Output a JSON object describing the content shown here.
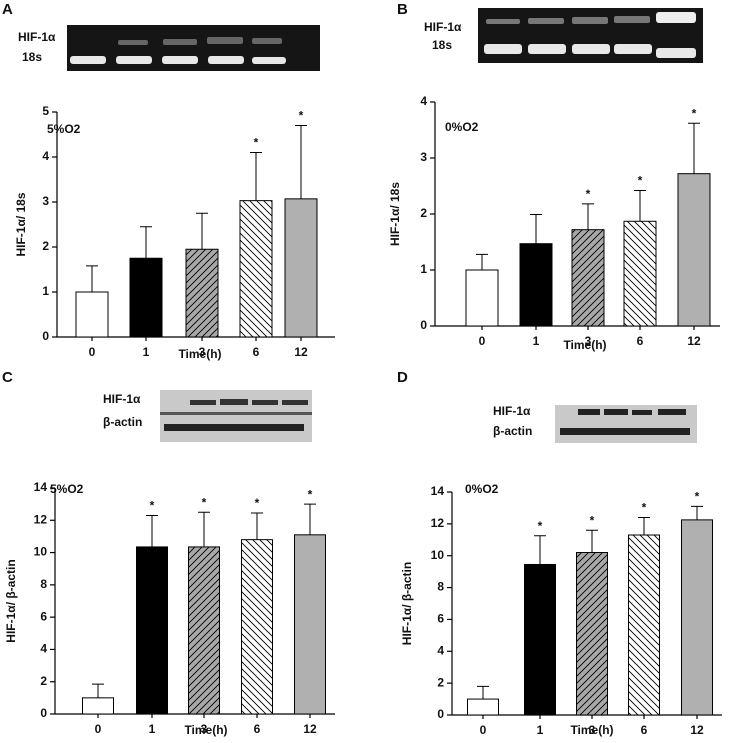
{
  "chart_data": [
    {
      "type": "bar",
      "panel": "A",
      "gel_labels": [
        "HIF-1α",
        "18s"
      ],
      "condition": "5%O2",
      "x_label": "Time(h)",
      "y_label": "HIF-1α/ 18s",
      "categories": [
        "0",
        "1",
        "3",
        "6",
        "12"
      ],
      "values": [
        1,
        1.75,
        1.95,
        3.03,
        3.07
      ],
      "errors": [
        0.58,
        0.7,
        0.8,
        1.07,
        1.63
      ],
      "colors": [
        "#ffffff",
        "#000000",
        "#a8a8a8",
        "#ffffff",
        "#b0b0b0"
      ],
      "patterns": [
        null,
        null,
        "diagonal-up",
        "diagonal-down",
        null
      ],
      "significant": [
        false,
        false,
        false,
        true,
        true
      ],
      "sig_mark": "*",
      "ylim": [
        0,
        5
      ],
      "yticks": [
        0,
        1,
        2,
        3,
        4,
        5
      ]
    },
    {
      "type": "bar",
      "panel": "B",
      "gel_labels": [
        "HIF-1α",
        "18s"
      ],
      "condition": "0%O2",
      "x_label": "Time(h)",
      "y_label": "HIF-1α/ 18s",
      "categories": [
        "0",
        "1",
        "3",
        "6",
        "12"
      ],
      "values": [
        1,
        1.47,
        1.72,
        1.87,
        2.72
      ],
      "errors": [
        0.28,
        0.52,
        0.46,
        0.55,
        0.9
      ],
      "colors": [
        "#ffffff",
        "#000000",
        "#a8a8a8",
        "#ffffff",
        "#b0b0b0"
      ],
      "patterns": [
        null,
        null,
        "diagonal-up",
        "diagonal-down",
        null
      ],
      "significant": [
        false,
        false,
        true,
        true,
        true
      ],
      "sig_mark": "*",
      "ylim": [
        0,
        4
      ],
      "yticks": [
        0,
        1,
        2,
        3,
        4
      ]
    },
    {
      "type": "bar",
      "panel": "C",
      "gel_labels": [
        "HIF-1α",
        "β-actin"
      ],
      "condition": "5%O2",
      "x_label": "Time(h)",
      "y_label": "HIF-1α/ β-actin",
      "categories": [
        "0",
        "1",
        "3",
        "6",
        "12"
      ],
      "values": [
        1,
        10.35,
        10.35,
        10.8,
        11.1
      ],
      "errors": [
        0.85,
        1.95,
        2.15,
        1.65,
        1.9
      ],
      "colors": [
        "#ffffff",
        "#000000",
        "#a8a8a8",
        "#ffffff",
        "#b0b0b0"
      ],
      "patterns": [
        null,
        null,
        "diagonal-up",
        "diagonal-down",
        null
      ],
      "significant": [
        false,
        true,
        true,
        true,
        true
      ],
      "sig_mark": "*",
      "ylim": [
        0,
        14
      ],
      "yticks": [
        0,
        2,
        4,
        6,
        8,
        10,
        12,
        14
      ]
    },
    {
      "type": "bar",
      "panel": "D",
      "gel_labels": [
        "HIF-1α",
        "β-actin"
      ],
      "condition": "0%O2",
      "x_label": "Time(h)",
      "y_label": "HIF-1α/ β-actin",
      "categories": [
        "0",
        "1",
        "3",
        "6",
        "12"
      ],
      "values": [
        1,
        9.45,
        10.2,
        11.3,
        12.25
      ],
      "errors": [
        0.8,
        1.8,
        1.4,
        1.1,
        0.85
      ],
      "colors": [
        "#ffffff",
        "#000000",
        "#a8a8a8",
        "#ffffff",
        "#b0b0b0"
      ],
      "patterns": [
        null,
        null,
        "diagonal-up",
        "diagonal-down",
        null
      ],
      "significant": [
        false,
        true,
        true,
        true,
        true
      ],
      "sig_mark": "*",
      "ylim": [
        0,
        14
      ],
      "yticks": [
        0,
        2,
        4,
        6,
        8,
        10,
        12,
        14
      ]
    }
  ]
}
